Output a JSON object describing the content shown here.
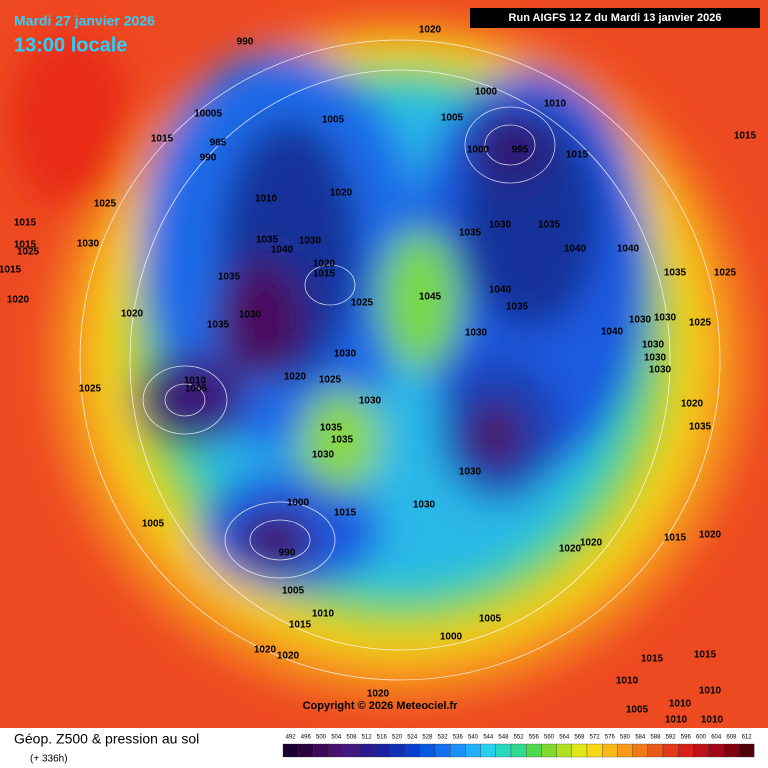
{
  "header": {
    "date": "Mardi 27 janvier 2026",
    "time": "13:00 locale",
    "run": "Run AIGFS 12 Z du Mardi 13 janvier 2026"
  },
  "copyright": "Copyright © 2026 Meteociel.fr",
  "footer": {
    "title": "Géop. Z500 & pression au sol",
    "lead": "(+ 336h)"
  },
  "legend": {
    "ticks": [
      492,
      496,
      500,
      504,
      508,
      512,
      516,
      520,
      524,
      528,
      532,
      536,
      540,
      544,
      548,
      552,
      556,
      560,
      564,
      568,
      572,
      576,
      580,
      584,
      588,
      592,
      596,
      600,
      604,
      608,
      612
    ]
  },
  "pressure_labels": [
    "990",
    "1020",
    "10005",
    "985",
    "990",
    "1015",
    "1005",
    "1005",
    "1000",
    "1010",
    "1000",
    "995",
    "1015",
    "1015",
    "1025",
    "1010",
    "1020",
    "1015",
    "1015",
    "1025",
    "1015",
    "1030",
    "1020",
    "1020",
    "1035",
    "1040",
    "1030",
    "1035",
    "1020",
    "1015",
    "1025",
    "1045",
    "1035",
    "1030",
    "1035",
    "1040",
    "1040",
    "1035",
    "1025",
    "1040",
    "1035",
    "1030",
    "1040",
    "1030",
    "1030",
    "1025",
    "1035",
    "1030",
    "1030",
    "1020",
    "1025",
    "1030",
    "1025",
    "1010",
    "1005",
    "1035",
    "1035",
    "1030",
    "1020",
    "1035",
    "1030",
    "1030",
    "1000",
    "1015",
    "1005",
    "990",
    "1015",
    "1020",
    "1020",
    "1020",
    "1005",
    "1010",
    "1015",
    "1005",
    "1000",
    "1020",
    "1020",
    "1015",
    "1015",
    "1010",
    "1020",
    "1005",
    "1010",
    "1010",
    "1010",
    "1010",
    "1030",
    "1030",
    "1030"
  ]
}
